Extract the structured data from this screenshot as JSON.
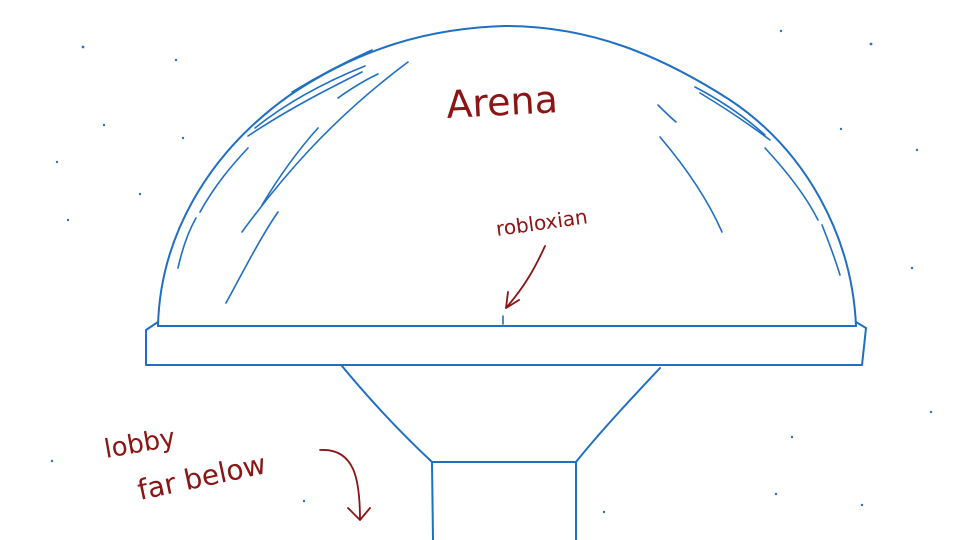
{
  "labels": {
    "arena": "Arena",
    "robloxian": "robloxian",
    "lobby_line1": "lobby",
    "lobby_line2": "far below"
  },
  "colors": {
    "structure": "#1f6fc4",
    "annotation": "#8b1414",
    "background": "#ffffff"
  }
}
